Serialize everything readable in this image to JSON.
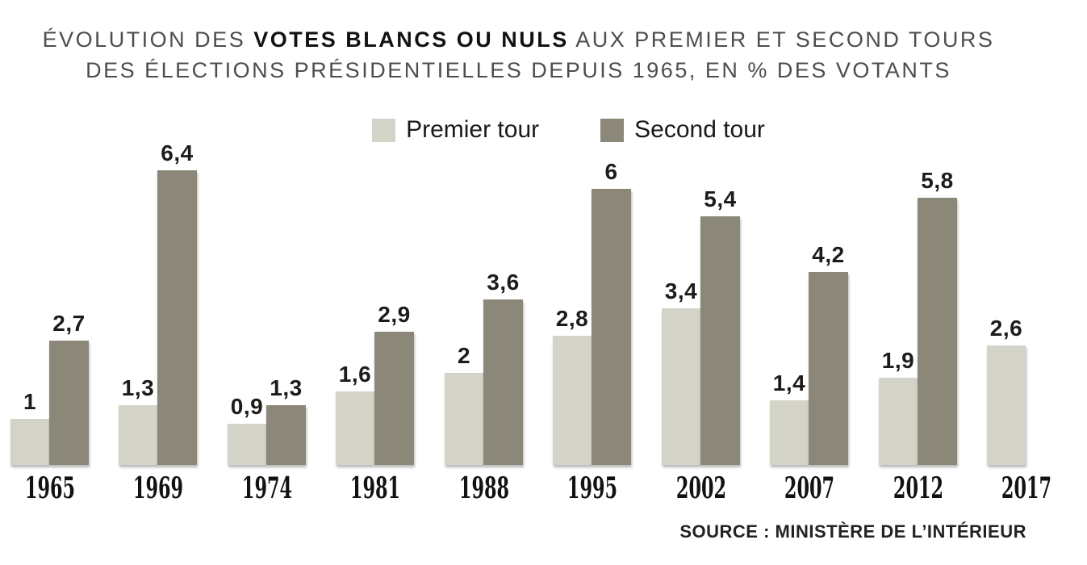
{
  "title": {
    "line1_pre": "ÉVOLUTION DES ",
    "line1_bold": "VOTES BLANCS OU NULS",
    "line1_post": " AUX PREMIER ET SECOND TOURS",
    "line2": "DES ÉLECTIONS PRÉSIDENTIELLES DEPUIS 1965, EN % DES VOTANTS"
  },
  "legend": [
    {
      "label": "Premier tour",
      "color": "#d4d3c7"
    },
    {
      "label": "Second tour",
      "color": "#8b8879"
    }
  ],
  "source": "SOURCE : MINISTÈRE DE L’INTÉRIEUR",
  "colors": {
    "premier_tour_bar": "#d4d3c7",
    "second_tour_bar": "#8b8879",
    "title_grey": "#4e4d4b",
    "text_black": "#121211"
  },
  "chart_data": {
    "type": "bar",
    "title": "Évolution des votes blancs ou nuls aux premier et second tours des élections présidentielles depuis 1965, en % des votants",
    "categories": [
      "1965",
      "1969",
      "1974",
      "1981",
      "1988",
      "1995",
      "2002",
      "2007",
      "2012",
      "2017"
    ],
    "series": [
      {
        "name": "Premier tour",
        "color": "#d4d3c7",
        "values": [
          1,
          1.3,
          0.9,
          1.6,
          2,
          2.8,
          3.4,
          1.4,
          1.9,
          2.6
        ],
        "labels": [
          "1",
          "1,3",
          "0,9",
          "1,6",
          "2",
          "2,8",
          "3,4",
          "1,4",
          "1,9",
          "2,6"
        ]
      },
      {
        "name": "Second tour",
        "color": "#8b8879",
        "values": [
          2.7,
          6.4,
          1.3,
          2.9,
          3.6,
          6,
          5.4,
          4.2,
          5.8,
          null
        ],
        "labels": [
          "2,7",
          "6,4",
          "1,3",
          "2,9",
          "3,6",
          "6",
          "5,4",
          "4,2",
          "5,8",
          null
        ]
      }
    ],
    "ylim": [
      0,
      6.4
    ],
    "unit": "% des votants",
    "grid": false,
    "legend_position": "top-center",
    "value_labels_shown": true
  }
}
